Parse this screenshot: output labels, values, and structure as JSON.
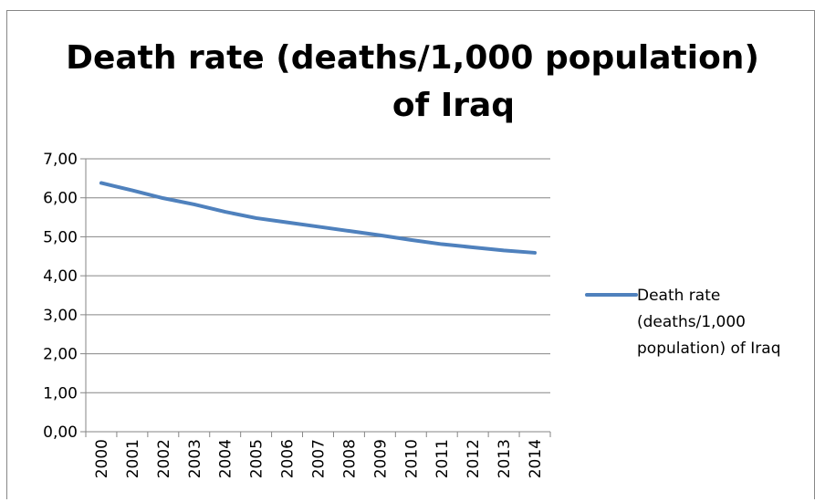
{
  "chart_data": {
    "type": "line",
    "title_line1": "Death rate (deaths/1,000 population)",
    "title_line2": "of Iraq",
    "categories": [
      "2000",
      "2001",
      "2002",
      "2003",
      "2004",
      "2005",
      "2006",
      "2007",
      "2008",
      "2009",
      "2010",
      "2011",
      "2012",
      "2013",
      "2014"
    ],
    "series": [
      {
        "name": "Death rate (deaths/1,000 population) of Iraq",
        "values": [
          6.38,
          6.19,
          5.99,
          5.83,
          5.64,
          5.48,
          5.37,
          5.26,
          5.15,
          5.04,
          4.92,
          4.81,
          4.73,
          4.65,
          4.59
        ],
        "color": "#4F81BD"
      }
    ],
    "y_ticks": [
      "0,00",
      "1,00",
      "2,00",
      "3,00",
      "4,00",
      "5,00",
      "6,00",
      "7,00"
    ],
    "ylim": [
      0,
      7
    ],
    "grid": true,
    "legend_position": "right",
    "legend_lines": [
      "Death rate",
      "(deaths/1,000",
      "population) of Iraq"
    ]
  }
}
